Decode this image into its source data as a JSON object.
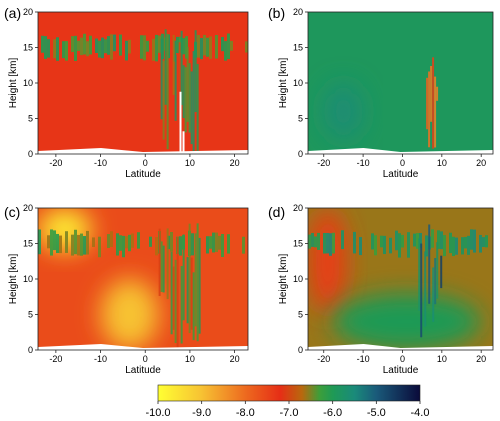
{
  "chart_data": [
    {
      "type": "heatmap",
      "panel_label": "(a)",
      "xlabel": "Latitude",
      "ylabel": "Height [km]",
      "xlim": [
        -24,
        23
      ],
      "ylim": [
        0,
        20
      ],
      "x_ticks": [
        "-20",
        "-10",
        "0",
        "10",
        "20"
      ],
      "y_ticks": [
        "0",
        "5",
        "10",
        "15",
        "20"
      ],
      "background_value": -7.3,
      "features": [
        {
          "kind": "layer",
          "lat": [
            -24,
            23
          ],
          "height": [
            13,
            17
          ],
          "value": -6.2
        },
        {
          "kind": "column",
          "lat": [
            3,
            12
          ],
          "height": [
            0,
            18
          ],
          "value": -6.4
        },
        {
          "kind": "gap",
          "lat": [
            7,
            9
          ],
          "height": [
            0,
            16
          ],
          "value": null
        }
      ]
    },
    {
      "type": "heatmap",
      "panel_label": "(b)",
      "xlabel": "Latitude",
      "ylabel": "Height [km]",
      "xlim": [
        -24,
        23
      ],
      "ylim": [
        0,
        20
      ],
      "x_ticks": [
        "-20",
        "-10",
        "0",
        "10",
        "20"
      ],
      "y_ticks": [
        "0",
        "5",
        "10",
        "15",
        "20"
      ],
      "background_value": -5.9,
      "features": [
        {
          "kind": "column",
          "lat": [
            6,
            9
          ],
          "height": [
            0,
            15
          ],
          "value": -7.8
        },
        {
          "kind": "region",
          "lat": [
            -20,
            -10
          ],
          "height": [
            2,
            10
          ],
          "value": -5.6
        }
      ]
    },
    {
      "type": "heatmap",
      "panel_label": "(c)",
      "xlabel": "Latitude",
      "ylabel": "Height [km]",
      "xlim": [
        -24,
        23
      ],
      "ylim": [
        0,
        20
      ],
      "x_ticks": [
        "-20",
        "-10",
        "0",
        "10",
        "20"
      ],
      "y_ticks": [
        "0",
        "5",
        "10",
        "15",
        "20"
      ],
      "background_value": -7.6,
      "features": [
        {
          "kind": "region",
          "lat": [
            -24,
            -12
          ],
          "height": [
            14,
            20
          ],
          "value": -9.6
        },
        {
          "kind": "region",
          "lat": [
            -10,
            3
          ],
          "height": [
            0,
            10
          ],
          "value": -9.0
        },
        {
          "kind": "layer",
          "lat": [
            -24,
            23
          ],
          "height": [
            13,
            17
          ],
          "value": -6.3
        },
        {
          "kind": "column",
          "lat": [
            3,
            12
          ],
          "height": [
            0,
            18
          ],
          "value": -6.5
        }
      ]
    },
    {
      "type": "heatmap",
      "panel_label": "(d)",
      "xlabel": "Latitude",
      "ylabel": "Height [km]",
      "xlim": [
        -24,
        23
      ],
      "ylim": [
        0,
        20
      ],
      "x_ticks": [
        "-20",
        "-10",
        "0",
        "10",
        "20"
      ],
      "y_ticks": [
        "0",
        "5",
        "10",
        "15",
        "20"
      ],
      "background_value": -6.6,
      "features": [
        {
          "kind": "region",
          "lat": [
            -24,
            -14
          ],
          "height": [
            5,
            20
          ],
          "value": -7.4
        },
        {
          "kind": "region",
          "lat": [
            -18,
            20
          ],
          "height": [
            0,
            8
          ],
          "value": -6.0
        },
        {
          "kind": "layer",
          "lat": [
            -24,
            23
          ],
          "height": [
            13,
            17
          ],
          "value": -5.9
        },
        {
          "kind": "column",
          "lat": [
            4,
            10
          ],
          "height": [
            0,
            18
          ],
          "value": -5.2
        }
      ]
    }
  ],
  "colorbar": {
    "ticks": [
      "-10.0",
      "-9.0",
      "-8.0",
      "-7.0",
      "-6.0",
      "-5.0",
      "-4.0"
    ],
    "range": [
      -10,
      -4
    ],
    "stops": [
      {
        "value": -10,
        "color": "#ffff33"
      },
      {
        "value": -9,
        "color": "#f7c233"
      },
      {
        "value": -8,
        "color": "#ed6a1f"
      },
      {
        "value": -7.2,
        "color": "#e62e16"
      },
      {
        "value": -6.7,
        "color": "#b8690e"
      },
      {
        "value": -6.3,
        "color": "#3d9e3a"
      },
      {
        "value": -6.0,
        "color": "#1f9a55"
      },
      {
        "value": -5.5,
        "color": "#1a8a7a"
      },
      {
        "value": -5.0,
        "color": "#1a5a7a"
      },
      {
        "value": -4,
        "color": "#0a0a3a"
      }
    ]
  }
}
